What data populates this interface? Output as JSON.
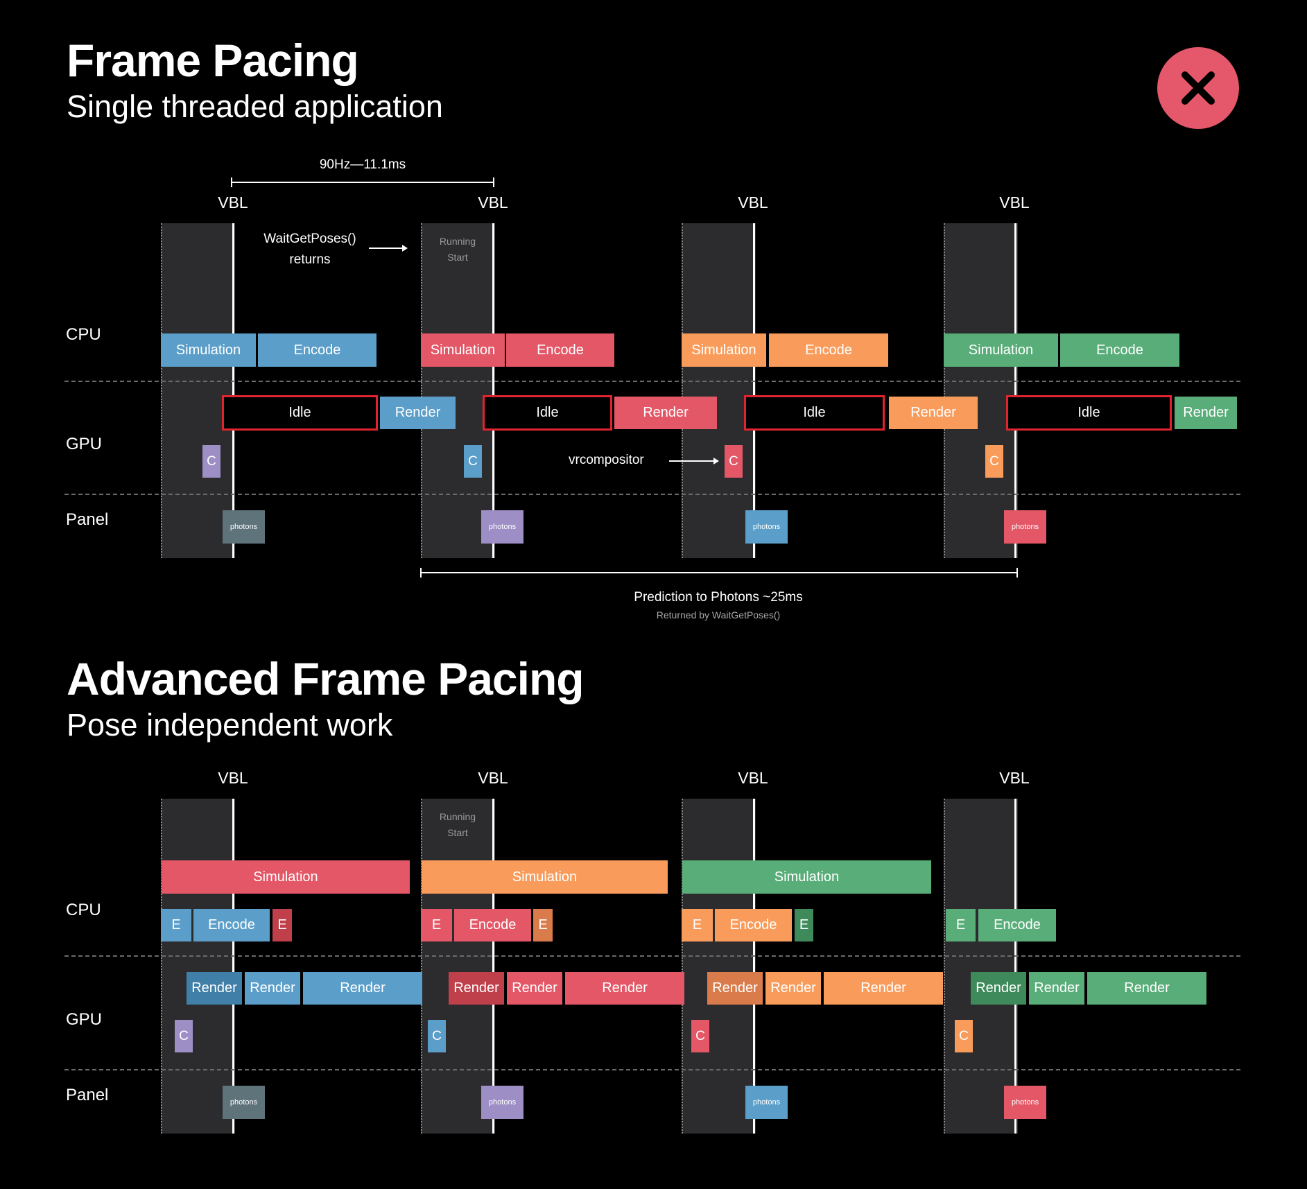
{
  "colors": {
    "blue": "#5a9ec9",
    "red": "#e35767",
    "orange": "#f99c5b",
    "green": "#58ad78",
    "purple": "#9e8ec6",
    "grey": "#5f737b",
    "dark_blue": "#3f7fa8",
    "dark_red": "#bf3f4a",
    "dark_orange": "#d97b4a",
    "dark_green": "#3e8a5a",
    "idle_border": "#e0242f",
    "close": "#e5576a"
  },
  "close_icon": "close-x-icon",
  "top": {
    "title": "Frame Pacing",
    "subtitle": "Single threaded application",
    "interval_label": "90Hz—11.1ms",
    "vbl_labels": [
      "VBL",
      "VBL",
      "VBL",
      "VBL"
    ],
    "running_start": [
      "Running",
      "Start"
    ],
    "wait_note": [
      "WaitGetPoses()",
      "returns"
    ],
    "lanes": {
      "cpu": "CPU",
      "gpu": "GPU",
      "panel": "Panel"
    },
    "cpu_blocks": [
      {
        "label": "Simulation"
      },
      {
        "label": "Encode"
      },
      {
        "label": "Simulation"
      },
      {
        "label": "Encode"
      },
      {
        "label": "Simulation"
      },
      {
        "label": "Encode"
      },
      {
        "label": "Simulation"
      },
      {
        "label": "Encode"
      }
    ],
    "gpu_blocks": [
      {
        "label": "Idle"
      },
      {
        "label": "Render"
      },
      {
        "label": "Idle"
      },
      {
        "label": "Render"
      },
      {
        "label": "Idle"
      },
      {
        "label": "Render"
      },
      {
        "label": "Idle"
      },
      {
        "label": "Render"
      }
    ],
    "compositor_blocks": [
      "C",
      "C",
      "C",
      "C"
    ],
    "compositor_note": "vrcompositor",
    "photon_blocks": [
      "photons",
      "photons",
      "photons",
      "photons"
    ],
    "latency_label": "Prediction to Photons ~25ms",
    "latency_sub": "Returned by WaitGetPoses()"
  },
  "bottom": {
    "title": "Advanced Frame Pacing",
    "subtitle": "Pose independent work",
    "vbl_labels": [
      "VBL",
      "VBL",
      "VBL",
      "VBL"
    ],
    "running_start": [
      "Running",
      "Start"
    ],
    "lanes": {
      "cpu": "CPU",
      "gpu": "GPU",
      "panel": "Panel"
    },
    "simulation_blocks": [
      "Simulation",
      "Simulation",
      "Simulation"
    ],
    "encode_blocks": [
      "E",
      "Encode",
      "E",
      "E",
      "Encode",
      "E",
      "E",
      "Encode",
      "E",
      "E",
      "Encode"
    ],
    "render_blocks": [
      "Render",
      "Render",
      "Render",
      "Render",
      "Render",
      "Render",
      "Render",
      "Render",
      "Render",
      "Render",
      "Render",
      "Render"
    ],
    "compositor_blocks": [
      "C",
      "C",
      "C",
      "C"
    ],
    "photon_blocks": [
      "photons",
      "photons",
      "photons",
      "photons"
    ]
  }
}
